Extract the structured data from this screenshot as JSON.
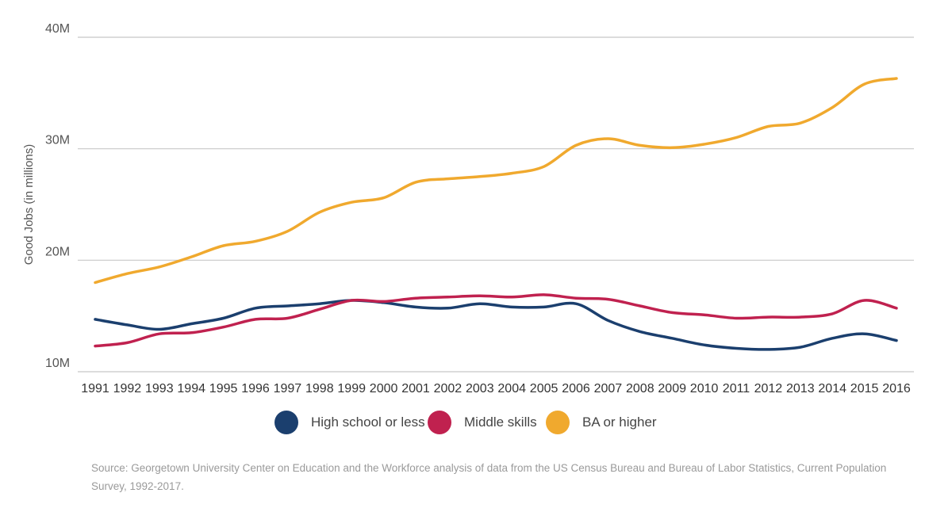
{
  "chart_data": {
    "type": "line",
    "title": "",
    "xlabel": "",
    "ylabel": "Good Jobs (in millions)",
    "x": [
      1991,
      1992,
      1993,
      1994,
      1995,
      1996,
      1997,
      1998,
      1999,
      2000,
      2001,
      2002,
      2003,
      2004,
      2005,
      2006,
      2007,
      2008,
      2009,
      2010,
      2011,
      2012,
      2013,
      2014,
      2015,
      2016
    ],
    "xticklabels": [
      "1991",
      "1992",
      "1993",
      "1994",
      "1995",
      "1996",
      "1997",
      "1998",
      "1999",
      "2000",
      "2001",
      "2002",
      "2003",
      "2004",
      "2005",
      "2006",
      "2007",
      "2008",
      "2009",
      "2010",
      "2011",
      "2012",
      "2013",
      "2014",
      "2015",
      "2016"
    ],
    "ylim": [
      10,
      40
    ],
    "yticks": [
      10,
      20,
      30,
      40
    ],
    "yticklabels": [
      "10M",
      "20M",
      "30M",
      "40M"
    ],
    "grid": true,
    "series": [
      {
        "name": "High school or less",
        "color": "#1b3f6e",
        "values": [
          14.7,
          14.2,
          13.8,
          14.3,
          14.8,
          15.7,
          15.9,
          16.1,
          16.4,
          16.2,
          15.8,
          15.7,
          16.1,
          15.8,
          15.8,
          16.1,
          14.6,
          13.6,
          13.0,
          12.4,
          12.1,
          12.0,
          12.2,
          13.0,
          13.4,
          12.8
        ]
      },
      {
        "name": "Middle skills",
        "color": "#c0214f",
        "values": [
          12.3,
          12.6,
          13.4,
          13.5,
          14.0,
          14.7,
          14.8,
          15.6,
          16.4,
          16.3,
          16.6,
          16.7,
          16.8,
          16.7,
          16.9,
          16.6,
          16.5,
          15.9,
          15.3,
          15.1,
          14.8,
          14.9,
          14.9,
          15.2,
          16.4,
          15.7
        ]
      },
      {
        "name": "BA or higher",
        "color": "#f0a92e",
        "values": [
          18.0,
          18.8,
          19.4,
          20.3,
          21.3,
          21.7,
          22.6,
          24.3,
          25.2,
          25.6,
          27.0,
          27.3,
          27.5,
          27.8,
          28.4,
          30.3,
          30.9,
          30.3,
          30.1,
          30.4,
          31.0,
          32.0,
          32.3,
          33.7,
          35.8,
          36.3
        ]
      }
    ],
    "legend": "bottom-center"
  },
  "source_text": "Source: Georgetown University Center on Education and the Workforce analysis of data from the US Census Bureau and Bureau of Labor Statistics, Current Population Survey, 1992-2017."
}
